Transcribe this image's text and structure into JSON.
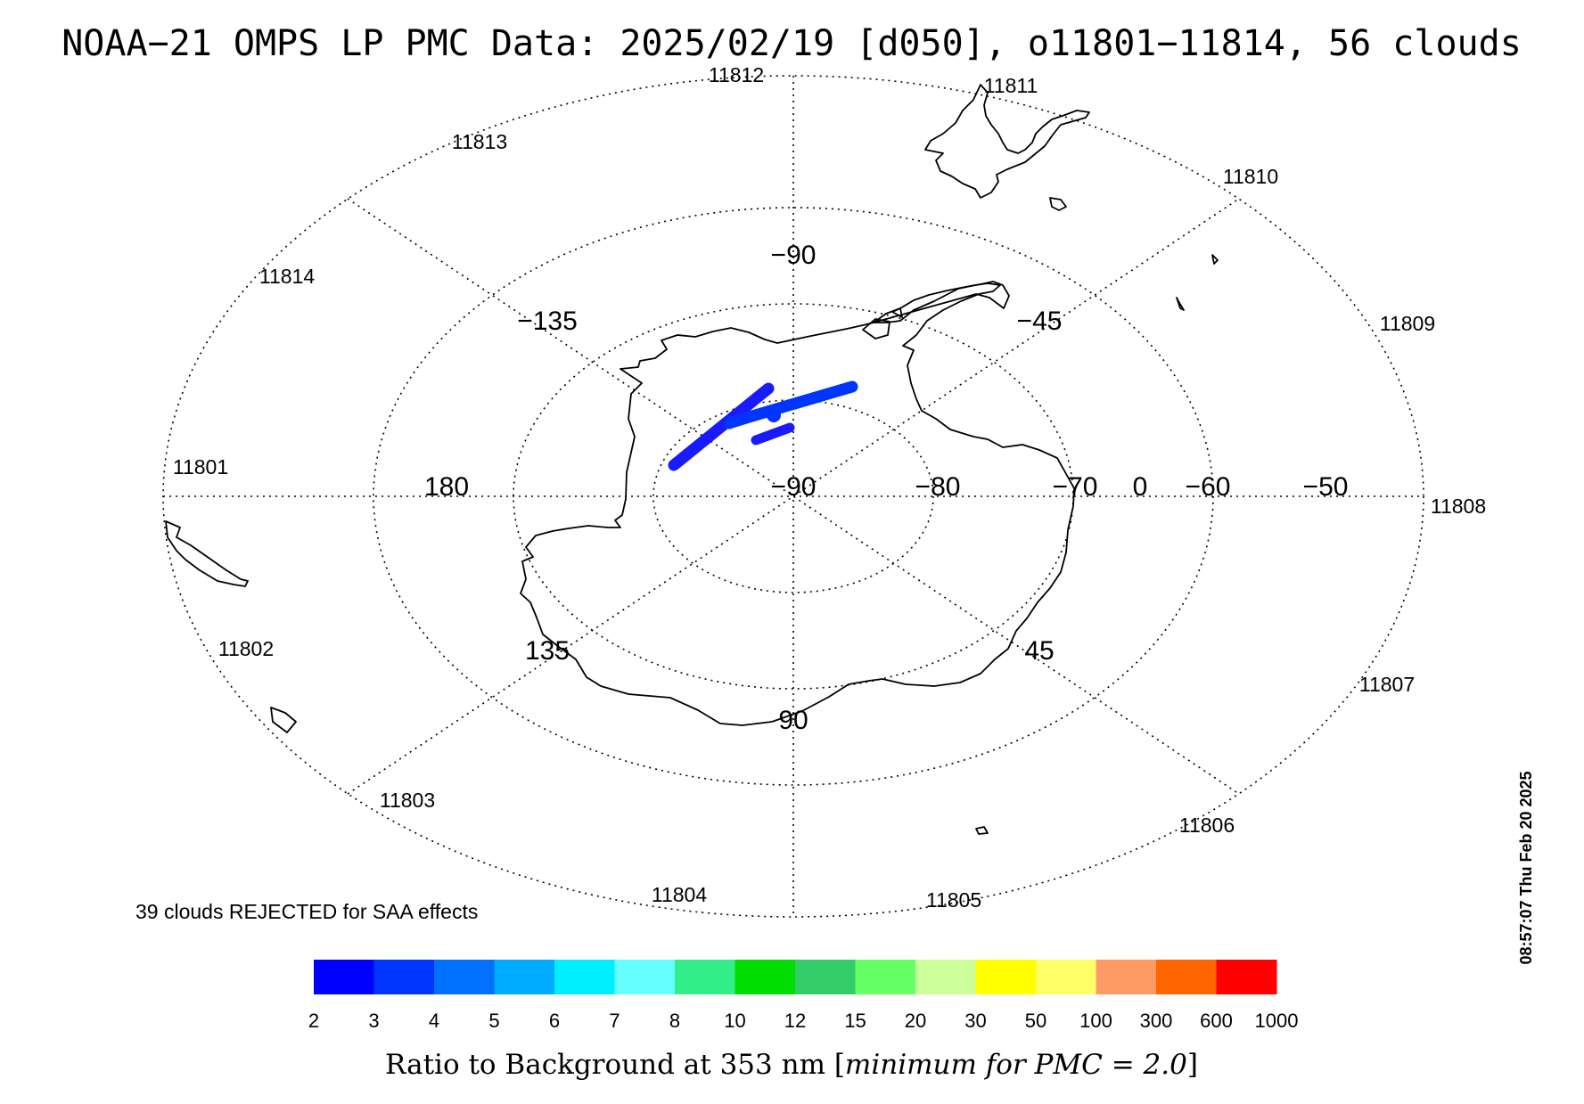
{
  "title": "NOAA−21 OMPS LP PMC Data: 2025/02/19 [d050], o11801−11814, 56 clouds",
  "timestamp": "08:57:07 Thu Feb 20 2025",
  "rejected_note": "39 clouds REJECTED for SAA effects",
  "colorbar": {
    "label_prefix": "Ratio to Background at 353 nm [",
    "label_italic": "minimum for PMC = 2.0",
    "label_suffix": "]",
    "ticks": [
      "2",
      "3",
      "4",
      "5",
      "6",
      "7",
      "8",
      "10",
      "12",
      "15",
      "20",
      "30",
      "50",
      "100",
      "300",
      "600",
      "1000"
    ],
    "colors": [
      "#0000ff",
      "#0035ff",
      "#0070ff",
      "#00aaff",
      "#00eeff",
      "#66ffff",
      "#33ee88",
      "#00dd00",
      "#33cc66",
      "#66ff66",
      "#ccff99",
      "#ffff00",
      "#ffff66",
      "#ff9966",
      "#ff6600",
      "#ff0000"
    ]
  },
  "map": {
    "longitude_labels": [
      {
        "id": "lon-neg90",
        "text": "−90"
      },
      {
        "id": "lon-neg135",
        "text": "−135"
      },
      {
        "id": "lon-neg45",
        "text": "−45"
      },
      {
        "id": "lon-180",
        "text": "180"
      },
      {
        "id": "lon-0",
        "text": "0"
      },
      {
        "id": "lon-135",
        "text": "135"
      },
      {
        "id": "lon-45",
        "text": "45"
      },
      {
        "id": "lon-90",
        "text": "90"
      }
    ],
    "latitude_labels": [
      {
        "id": "lat-neg90",
        "text": "−90"
      },
      {
        "id": "lat-neg80",
        "text": "−80"
      },
      {
        "id": "lat-neg70",
        "text": "−70"
      },
      {
        "id": "lat-neg60",
        "text": "−60"
      },
      {
        "id": "lat-neg50",
        "text": "−50"
      }
    ],
    "orbit_labels": [
      "11801",
      "11802",
      "11803",
      "11804",
      "11805",
      "11806",
      "11807",
      "11808",
      "11809",
      "11810",
      "11811",
      "11812",
      "11813",
      "11814"
    ]
  }
}
